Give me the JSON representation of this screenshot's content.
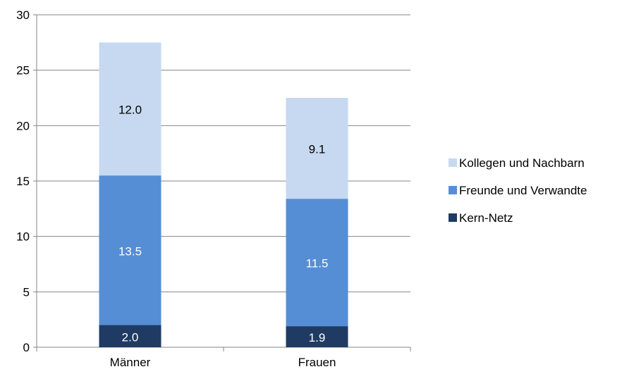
{
  "chart_data": {
    "type": "bar",
    "stacked": true,
    "title": "",
    "xlabel": "",
    "ylabel": "",
    "ylim": [
      0,
      30
    ],
    "yticks": [
      "0",
      "5",
      "10",
      "15",
      "20",
      "25",
      "30"
    ],
    "grid": true,
    "legend_position": "right",
    "categories": [
      "Männer",
      "Frauen"
    ],
    "series": [
      {
        "name": "Kern-Netz",
        "values": [
          2.0,
          1.9
        ],
        "labels": [
          "2.0",
          "1.9"
        ],
        "color": "#1f3b63"
      },
      {
        "name": "Freunde und Verwandte",
        "values": [
          13.5,
          11.5
        ],
        "labels": [
          "13.5",
          "11.5"
        ],
        "color": "#558ed5"
      },
      {
        "name": "Kollegen und Nachbarn",
        "values": [
          12.0,
          9.1
        ],
        "labels": [
          "12.0",
          "9.1"
        ],
        "color": "#c6d9f1"
      }
    ],
    "legend_order": [
      "Kollegen und Nachbarn",
      "Freunde und Verwandte",
      "Kern-Netz"
    ]
  }
}
